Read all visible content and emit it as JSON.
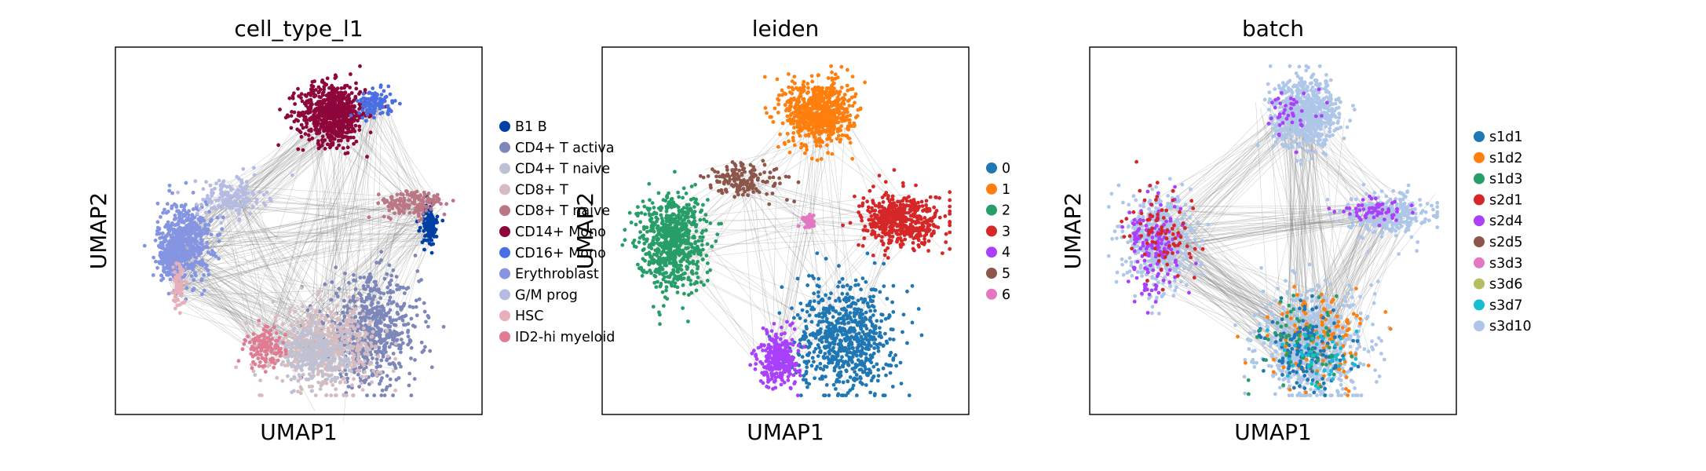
{
  "chart_data": [
    {
      "type": "scatter",
      "title": "cell_type_l1",
      "xlabel": "UMAP1",
      "ylabel": "UMAP2",
      "xticks": "none",
      "yticks": "none",
      "grid": false,
      "legend_placement": "right-outside",
      "edges": {
        "color": "#808080",
        "description": "PAGA/kNN connectivity edges drawn behind points"
      },
      "legend": [
        {
          "name": "B1 B",
          "color": "#023fa5"
        },
        {
          "name": "CD4+ T activa",
          "color": "#7d87b9"
        },
        {
          "name": "CD4+ T naive",
          "color": "#bec1d4"
        },
        {
          "name": "CD8+ T",
          "color": "#d6bcc0"
        },
        {
          "name": "CD8+ T naive",
          "color": "#bb7784"
        },
        {
          "name": "CD14+ Mono",
          "color": "#8e063b"
        },
        {
          "name": "CD16+ Mono",
          "color": "#4a6fe3"
        },
        {
          "name": "Erythroblast",
          "color": "#8595e1"
        },
        {
          "name": "G/M prog",
          "color": "#b5bbe3"
        },
        {
          "name": "HSC",
          "color": "#e6afb9"
        },
        {
          "name": "ID2-hi myeloid",
          "color": "#e07b91"
        }
      ],
      "clusters": [
        {
          "label": "CD14+ Mono",
          "color": "#8e063b",
          "x": 0.6,
          "y": 0.85,
          "sx": 0.05,
          "sy": 0.045,
          "n": 900
        },
        {
          "label": "CD16+ Mono",
          "color": "#4a6fe3",
          "x": 0.73,
          "y": 0.88,
          "sx": 0.025,
          "sy": 0.02,
          "n": 120
        },
        {
          "label": "Erythroblast",
          "color": "#8595e1",
          "x": 0.16,
          "y": 0.47,
          "sx": 0.04,
          "sy": 0.06,
          "n": 500
        },
        {
          "label": "Erythroblast",
          "color": "#8595e1",
          "x": 0.12,
          "y": 0.42,
          "sx": 0.02,
          "sy": 0.03,
          "n": 150
        },
        {
          "label": "G/M prog",
          "color": "#b5bbe3",
          "x": 0.3,
          "y": 0.6,
          "sx": 0.05,
          "sy": 0.03,
          "n": 150
        },
        {
          "label": "CD4+ T activa",
          "color": "#7d87b9",
          "x": 0.72,
          "y": 0.2,
          "sx": 0.07,
          "sy": 0.08,
          "n": 600
        },
        {
          "label": "CD8+ T",
          "color": "#d6bcc0",
          "x": 0.58,
          "y": 0.15,
          "sx": 0.08,
          "sy": 0.06,
          "n": 500
        },
        {
          "label": "CD4+ T naive",
          "color": "#bec1d4",
          "x": 0.55,
          "y": 0.13,
          "sx": 0.05,
          "sy": 0.04,
          "n": 250
        },
        {
          "label": "ID2-hi myeloid",
          "color": "#e07b91",
          "x": 0.4,
          "y": 0.15,
          "sx": 0.03,
          "sy": 0.03,
          "n": 120
        },
        {
          "label": "HSC",
          "color": "#e6afb9",
          "x": 0.14,
          "y": 0.33,
          "sx": 0.008,
          "sy": 0.03,
          "n": 60
        },
        {
          "label": "B1 B",
          "color": "#023fa5",
          "x": 0.89,
          "y": 0.52,
          "sx": 0.012,
          "sy": 0.03,
          "n": 120
        },
        {
          "label": "CD8+ T naive",
          "color": "#bb7784",
          "x": 0.84,
          "y": 0.58,
          "sx": 0.05,
          "sy": 0.02,
          "n": 150
        }
      ]
    },
    {
      "type": "scatter",
      "title": "leiden",
      "xlabel": "UMAP1",
      "ylabel": "UMAP2",
      "xticks": "none",
      "yticks": "none",
      "grid": false,
      "legend_placement": "right-outside",
      "edges": {
        "color": "#808080",
        "description": "PAGA/kNN connectivity edges drawn behind points"
      },
      "legend": [
        {
          "name": "0",
          "color": "#1f77b4"
        },
        {
          "name": "1",
          "color": "#ff7f0e"
        },
        {
          "name": "2",
          "color": "#279e68"
        },
        {
          "name": "3",
          "color": "#d62728"
        },
        {
          "name": "4",
          "color": "#aa40fc"
        },
        {
          "name": "5",
          "color": "#8c564b"
        },
        {
          "name": "6",
          "color": "#e377c2"
        }
      ],
      "clusters": [
        {
          "label": "1",
          "color": "#ff7f0e",
          "x": 0.6,
          "y": 0.85,
          "sx": 0.05,
          "sy": 0.05,
          "n": 1000
        },
        {
          "label": "2",
          "color": "#279e68",
          "x": 0.16,
          "y": 0.47,
          "sx": 0.05,
          "sy": 0.07,
          "n": 800
        },
        {
          "label": "3",
          "color": "#d62728",
          "x": 0.85,
          "y": 0.53,
          "sx": 0.06,
          "sy": 0.04,
          "n": 500
        },
        {
          "label": "0",
          "color": "#1f77b4",
          "x": 0.68,
          "y": 0.18,
          "sx": 0.07,
          "sy": 0.08,
          "n": 1100
        },
        {
          "label": "4",
          "color": "#aa40fc",
          "x": 0.48,
          "y": 0.12,
          "sx": 0.03,
          "sy": 0.04,
          "n": 300
        },
        {
          "label": "5",
          "color": "#8c564b",
          "x": 0.38,
          "y": 0.65,
          "sx": 0.06,
          "sy": 0.025,
          "n": 150
        },
        {
          "label": "6",
          "color": "#e377c2",
          "x": 0.57,
          "y": 0.53,
          "sx": 0.01,
          "sy": 0.01,
          "n": 40
        }
      ]
    },
    {
      "type": "scatter",
      "title": "batch",
      "xlabel": "UMAP1",
      "ylabel": "UMAP2",
      "xticks": "none",
      "yticks": "none",
      "grid": false,
      "legend_placement": "right-outside",
      "edges": {
        "color": "#808080",
        "description": "PAGA/kNN connectivity edges drawn behind points"
      },
      "legend": [
        {
          "name": "s1d1",
          "color": "#1f77b4"
        },
        {
          "name": "s1d2",
          "color": "#ff7f0e"
        },
        {
          "name": "s1d3",
          "color": "#279e68"
        },
        {
          "name": "s2d1",
          "color": "#d62728"
        },
        {
          "name": "s2d4",
          "color": "#aa40fc"
        },
        {
          "name": "s2d5",
          "color": "#8c564b"
        },
        {
          "name": "s3d3",
          "color": "#e377c2"
        },
        {
          "name": "s3d6",
          "color": "#b5bd61"
        },
        {
          "name": "s3d7",
          "color": "#17becf"
        },
        {
          "name": "s3d10",
          "color": "#aec7e8"
        }
      ],
      "clusters": [
        {
          "label": "s3d10",
          "color": "#aec7e8",
          "x": 0.6,
          "y": 0.85,
          "sx": 0.05,
          "sy": 0.05,
          "n": 700
        },
        {
          "label": "s3d10",
          "color": "#aec7e8",
          "x": 0.16,
          "y": 0.47,
          "sx": 0.05,
          "sy": 0.07,
          "n": 500
        },
        {
          "label": "s2d4",
          "color": "#aa40fc",
          "x": 0.15,
          "y": 0.45,
          "sx": 0.04,
          "sy": 0.07,
          "n": 150
        },
        {
          "label": "s2d1",
          "color": "#d62728",
          "x": 0.17,
          "y": 0.5,
          "sx": 0.05,
          "sy": 0.07,
          "n": 80
        },
        {
          "label": "s3d10",
          "color": "#aec7e8",
          "x": 0.85,
          "y": 0.55,
          "sx": 0.06,
          "sy": 0.03,
          "n": 300
        },
        {
          "label": "s2d4",
          "color": "#aa40fc",
          "x": 0.8,
          "y": 0.56,
          "sx": 0.05,
          "sy": 0.02,
          "n": 60
        },
        {
          "label": "s3d10",
          "color": "#aec7e8",
          "x": 0.62,
          "y": 0.16,
          "sx": 0.08,
          "sy": 0.08,
          "n": 900
        },
        {
          "label": "s1d2",
          "color": "#ff7f0e",
          "x": 0.64,
          "y": 0.18,
          "sx": 0.07,
          "sy": 0.07,
          "n": 120
        },
        {
          "label": "s1d1",
          "color": "#1f77b4",
          "x": 0.6,
          "y": 0.14,
          "sx": 0.06,
          "sy": 0.06,
          "n": 150
        },
        {
          "label": "s1d3",
          "color": "#279e68",
          "x": 0.58,
          "y": 0.18,
          "sx": 0.06,
          "sy": 0.06,
          "n": 60
        },
        {
          "label": "s3d7",
          "color": "#17becf",
          "x": 0.62,
          "y": 0.12,
          "sx": 0.07,
          "sy": 0.05,
          "n": 50
        },
        {
          "label": "s2d4",
          "color": "#aa40fc",
          "x": 0.55,
          "y": 0.85,
          "sx": 0.04,
          "sy": 0.04,
          "n": 40
        }
      ]
    }
  ]
}
